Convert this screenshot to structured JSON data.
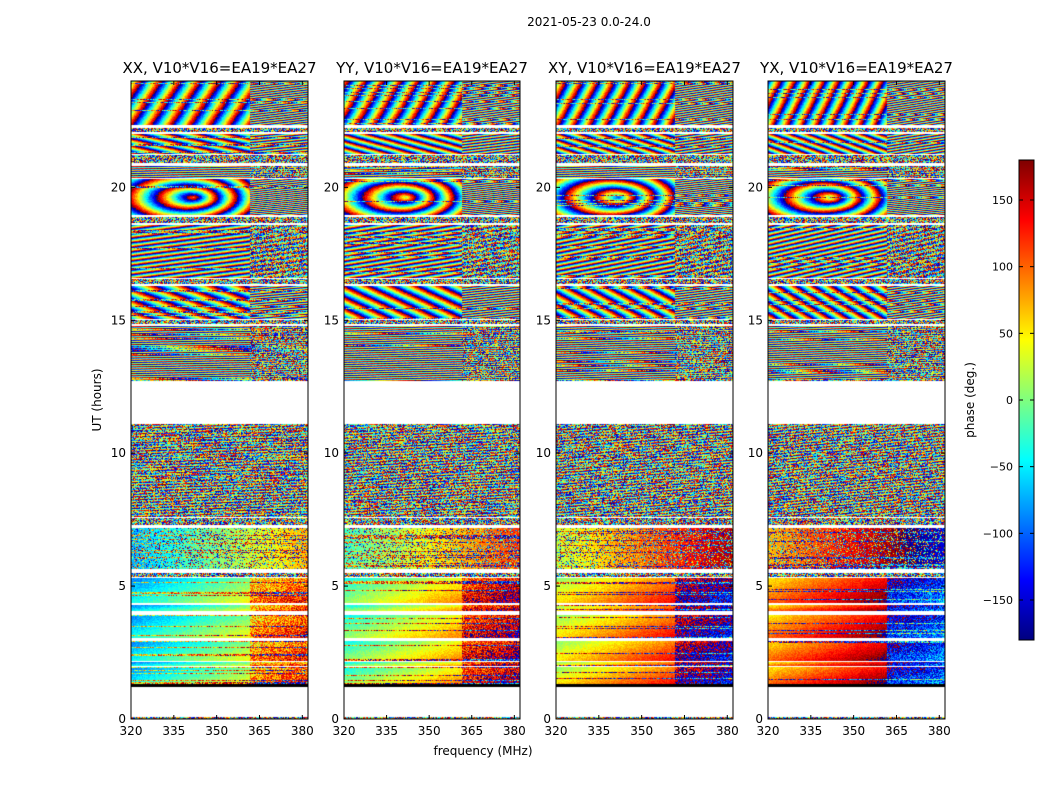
{
  "figure": {
    "suptitle": "2021-05-23 0.0-24.0"
  },
  "chart_data": {
    "type": "heatmap",
    "title": "2021-05-23 0.0-24.0",
    "xlabel": "frequency (MHz)",
    "ylabel": "UT (hours)",
    "xlim": [
      320,
      382
    ],
    "ylim": [
      0,
      24
    ],
    "xticks": [
      320,
      335,
      350,
      365,
      380
    ],
    "yticks": [
      0,
      5,
      10,
      15,
      20
    ],
    "grid": false,
    "colormap": "jet",
    "colors": {
      "jet": [
        "#00007f",
        "#0000ff",
        "#007fff",
        "#00ffff",
        "#7fff7f",
        "#ffff00",
        "#ff7f00",
        "#ff0000",
        "#7f0000"
      ]
    },
    "colorbar": {
      "label": "phase (deg.)",
      "range": [
        -180,
        180
      ],
      "ticks": [
        150,
        100,
        50,
        0,
        -50,
        -100,
        -150
      ],
      "tick_labels": [
        "150",
        "100",
        "50",
        "0",
        "−50",
        "−100",
        "−150"
      ],
      "placement": "right"
    },
    "panels": [
      {
        "title": "XX, V10*V16=EA19*EA27",
        "show_ylabel": true,
        "show_xlabel": false,
        "split_freq": 361.5,
        "fringe_base": 0.0
      },
      {
        "title": "YY, V10*V16=EA19*EA27",
        "show_ylabel": false,
        "show_xlabel": true,
        "split_freq": 361.5,
        "fringe_base": 1.3
      },
      {
        "title": "XY, V10*V16=EA19*EA27",
        "show_ylabel": false,
        "show_xlabel": false,
        "split_freq": 361.5,
        "fringe_base": 2.6
      },
      {
        "title": "YX, V10*V16=EA19*EA27",
        "show_ylabel": false,
        "show_xlabel": false,
        "split_freq": 361.5,
        "fringe_base": 3.9
      }
    ],
    "time_blocks": [
      {
        "start": 0.0,
        "end": 0.06,
        "style": "noise"
      },
      {
        "start": 1.2,
        "end": 1.32,
        "style": "black"
      },
      {
        "start": 1.32,
        "end": 1.95,
        "style": "slow"
      },
      {
        "start": 2.0,
        "end": 2.15,
        "style": "slow"
      },
      {
        "start": 2.2,
        "end": 2.95,
        "style": "slow"
      },
      {
        "start": 3.05,
        "end": 3.9,
        "style": "slow"
      },
      {
        "start": 4.05,
        "end": 4.3,
        "style": "slow"
      },
      {
        "start": 4.35,
        "end": 5.3,
        "style": "slow"
      },
      {
        "start": 5.35,
        "end": 5.5,
        "style": "noise"
      },
      {
        "start": 5.65,
        "end": 7.2,
        "style": "noisy-slow"
      },
      {
        "start": 7.3,
        "end": 7.55,
        "style": "noise"
      },
      {
        "start": 7.6,
        "end": 11.1,
        "style": "mixed"
      },
      {
        "start": 12.7,
        "end": 14.8,
        "style": "fringe-h"
      },
      {
        "start": 14.85,
        "end": 15.0,
        "style": "noise"
      },
      {
        "start": 15.05,
        "end": 16.3,
        "style": "fringe-d"
      },
      {
        "start": 16.35,
        "end": 16.55,
        "style": "noise"
      },
      {
        "start": 16.6,
        "end": 18.6,
        "style": "fringe-d2"
      },
      {
        "start": 18.65,
        "end": 18.9,
        "style": "noise"
      },
      {
        "start": 18.95,
        "end": 20.3,
        "style": "blob"
      },
      {
        "start": 20.35,
        "end": 20.8,
        "style": "fringe-h"
      },
      {
        "start": 20.9,
        "end": 21.2,
        "style": "noise"
      },
      {
        "start": 21.25,
        "end": 22.0,
        "style": "fringe-d"
      },
      {
        "start": 22.1,
        "end": 22.25,
        "style": "noise"
      },
      {
        "start": 22.35,
        "end": 24.0,
        "style": "fringe-v"
      }
    ]
  }
}
